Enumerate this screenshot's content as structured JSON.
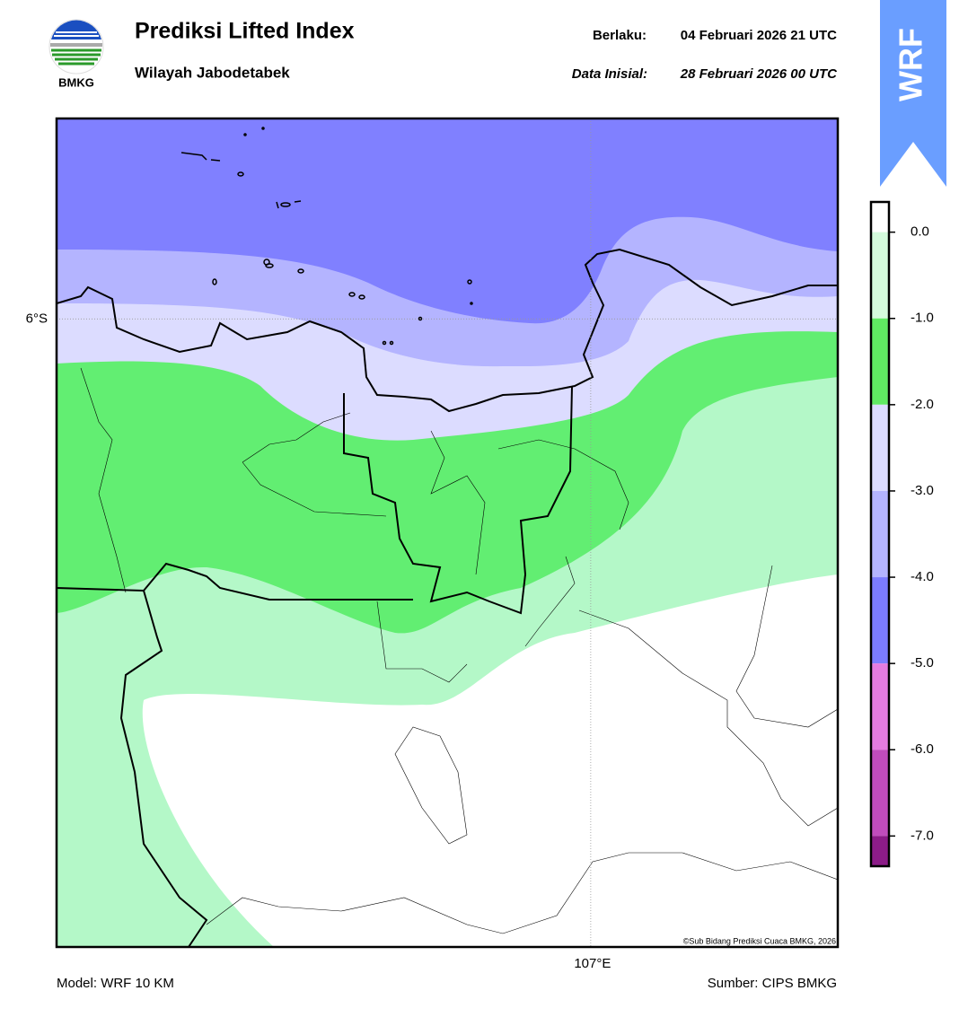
{
  "header": {
    "title": "Prediksi Lifted Index",
    "subtitle": "Wilayah Jabodetabek",
    "valid_label": "Berlaku:",
    "valid_time": "04 Februari 2026 21 UTC",
    "init_label": "Data Inisial:",
    "init_time": "28 Februari 2026 00 UTC",
    "logo_text": "BMKG",
    "badge": "WRF"
  },
  "map": {
    "xlim": [
      106.2,
      107.37
    ],
    "ylim": [
      -6.94,
      -5.7
    ],
    "xticks": [
      {
        "value": 107,
        "label": "107°E"
      }
    ],
    "yticks": [
      {
        "value": -6,
        "label": "6°S"
      }
    ],
    "credit": "©Sub Bidang Prediksi Cuaca BMKG, 2026"
  },
  "colorbar": {
    "lim": [
      -7.35,
      0.35
    ],
    "ticks": [
      {
        "value": 0,
        "label": "0.0"
      },
      {
        "value": -1,
        "label": "-1.0"
      },
      {
        "value": -2,
        "label": "-2.0"
      },
      {
        "value": -3,
        "label": "-3.0"
      },
      {
        "value": -4,
        "label": "-4.0"
      },
      {
        "value": -5,
        "label": "-5.0"
      },
      {
        "value": -6,
        "label": "-6.0"
      },
      {
        "value": -7,
        "label": "-7.0"
      }
    ],
    "bands": [
      {
        "from": 0.35,
        "to": 0,
        "color": "#ffffff"
      },
      {
        "from": 0,
        "to": -1,
        "color": "#d4fadc"
      },
      {
        "from": -1,
        "to": -2,
        "color": "#60ea62"
      },
      {
        "from": -2,
        "to": -3,
        "color": "#dcdcff"
      },
      {
        "from": -3,
        "to": -4,
        "color": "#b4b4ff"
      },
      {
        "from": -4,
        "to": -5,
        "color": "#7c7cff"
      },
      {
        "from": -5,
        "to": -6,
        "color": "#e47ce0"
      },
      {
        "from": -6,
        "to": -7,
        "color": "#c04cbc"
      },
      {
        "from": -7,
        "to": -7.35,
        "color": "#8c1c88"
      }
    ]
  },
  "footer": {
    "model": "Model: WRF 10 KM",
    "source": "Sumber: CIPS BMKG"
  }
}
